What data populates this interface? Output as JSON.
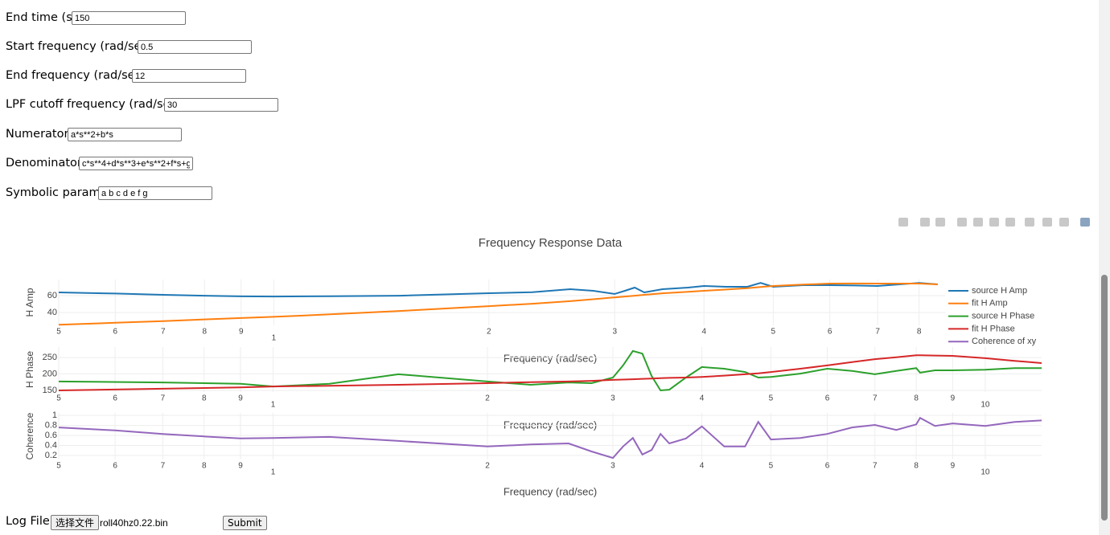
{
  "form": {
    "fields": [
      {
        "label": "End time (s):",
        "value": "150"
      },
      {
        "label": "Start frequency (rad/sec):",
        "value": "0.5"
      },
      {
        "label": "End frequency (rad/sec):",
        "value": "12"
      },
      {
        "label": "LPF cutoff frequency (rad/sec):",
        "value": "30"
      },
      {
        "label": "Numerator:",
        "value": "a*s**2+b*s"
      },
      {
        "label": "Denominator:",
        "value": "c*s**4+d*s**3+e*s**2+f*s+g"
      },
      {
        "label": "Symbolic params:",
        "value": "a b c d e f g"
      }
    ]
  },
  "log_file": {
    "label": "Log File:",
    "button": "选择文件",
    "file": "roll40hz0.22.bin",
    "submit": "Submit"
  },
  "chart_data": [
    {
      "type": "line",
      "title": "Frequency Response Data",
      "xlabel": "Frequency (rad/sec)",
      "ylabel": "H Amp",
      "xscale": "log",
      "grid": true,
      "x": [
        0.5,
        0.6,
        0.7,
        0.8,
        0.9,
        1,
        1.2,
        1.5,
        2,
        2.3,
        2.6,
        2.8,
        3,
        3.1,
        3.2,
        3.3,
        3.5,
        3.8,
        4,
        4.3,
        4.6,
        4.8,
        5,
        5.5,
        6,
        6.5,
        7,
        7.5,
        8,
        8.5
      ],
      "xlim": [
        0.5,
        8.7
      ],
      "xticks": [
        {
          "value": 0.5,
          "label": "5"
        },
        {
          "value": 0.6,
          "label": "6"
        },
        {
          "value": 0.7,
          "label": "7"
        },
        {
          "value": 0.8,
          "label": "8"
        },
        {
          "value": 0.9,
          "label": "9"
        },
        1,
        2,
        3,
        4,
        5,
        6,
        7,
        8
      ],
      "ylim": [
        25,
        79
      ],
      "yticks": [
        40,
        60
      ],
      "series": [
        {
          "name": "source H Amp",
          "color": "#1f77b4",
          "values": [
            63.8,
            62.5,
            61,
            60,
            59.2,
            59,
            59.3,
            60,
            62.9,
            64,
            67.6,
            65.7,
            62,
            65.7,
            69.5,
            63.8,
            67.6,
            69.5,
            71.4,
            70.5,
            70.5,
            75,
            70.5,
            72.4,
            72.4,
            72,
            71.4,
            73.3,
            75,
            73.3
          ]
        },
        {
          "name": "fit H Amp",
          "color": "#ff7f0e",
          "values": [
            25.7,
            28,
            30,
            32,
            33.6,
            35,
            38,
            42,
            47.6,
            50.5,
            53.5,
            55.8,
            58,
            59,
            60,
            61,
            62.8,
            64.6,
            65.7,
            67.3,
            68.8,
            70.3,
            71.4,
            73,
            74.3,
            74.4,
            74.3,
            74.3,
            74.3,
            73.3
          ]
        }
      ]
    },
    {
      "type": "line",
      "xlabel": "Frequency (rad/sec)",
      "ylabel": "H Phase",
      "xscale": "log",
      "grid": true,
      "x": [
        0.5,
        0.7,
        0.9,
        1,
        1.2,
        1.5,
        2,
        2.3,
        2.6,
        2.8,
        3,
        3.1,
        3.2,
        3.3,
        3.4,
        3.5,
        3.6,
        3.8,
        4,
        4.3,
        4.6,
        4.8,
        5,
        5.5,
        6,
        6.5,
        7,
        7.5,
        8,
        8.1,
        8.5,
        9,
        10,
        11,
        12
      ],
      "xlim": [
        0.5,
        12
      ],
      "xticks": [
        {
          "value": 0.5,
          "label": "5"
        },
        {
          "value": 0.6,
          "label": "6"
        },
        {
          "value": 0.7,
          "label": "7"
        },
        {
          "value": 0.8,
          "label": "8"
        },
        {
          "value": 0.9,
          "label": "9"
        },
        1,
        2,
        3,
        4,
        5,
        6,
        7,
        8,
        9,
        10
      ],
      "ylim": [
        145,
        282
      ],
      "yticks": [
        150,
        200,
        250
      ],
      "series": [
        {
          "name": "source H Phase",
          "color": "#2ca02c",
          "values": [
            177,
            174,
            170,
            162,
            170,
            199,
            177,
            167,
            174,
            172,
            189,
            226,
            270,
            262,
            194,
            150,
            152,
            189,
            221,
            216,
            206,
            189,
            191,
            201,
            216,
            209,
            199,
            209,
            218,
            204,
            211,
            211,
            213,
            218,
            218
          ]
        },
        {
          "name": "fit H Phase",
          "color": "#d62728",
          "values": [
            150,
            155,
            159,
            162,
            164,
            167,
            172,
            175,
            177,
            179,
            182,
            183,
            184,
            185,
            186,
            187,
            188,
            189,
            191,
            195,
            199,
            202,
            206,
            216,
            226,
            236,
            245,
            251,
            257,
            257,
            256,
            255,
            248,
            240,
            233
          ]
        }
      ]
    },
    {
      "type": "line",
      "xlabel": "Frequency (rad/sec)",
      "ylabel": "Coherence",
      "xscale": "log",
      "grid": true,
      "x": [
        0.5,
        0.6,
        0.7,
        0.8,
        0.9,
        1,
        1.2,
        1.5,
        2,
        2.3,
        2.6,
        2.8,
        3,
        3.1,
        3.2,
        3.3,
        3.4,
        3.5,
        3.6,
        3.8,
        4,
        4.3,
        4.6,
        4.8,
        5,
        5.5,
        6,
        6.5,
        7,
        7.5,
        8,
        8.1,
        8.5,
        9,
        10,
        11,
        12
      ],
      "xlim": [
        0.5,
        12
      ],
      "xticks": [
        {
          "value": 0.5,
          "label": "5"
        },
        {
          "value": 0.6,
          "label": "6"
        },
        {
          "value": 0.7,
          "label": "7"
        },
        {
          "value": 0.8,
          "label": "8"
        },
        {
          "value": 0.9,
          "label": "9"
        },
        1,
        2,
        3,
        4,
        5,
        6,
        7,
        8,
        9,
        10
      ],
      "ylim": [
        0.12,
        1.05
      ],
      "yticks": [
        0.2,
        0.4,
        0.6,
        0.8,
        1
      ],
      "series": [
        {
          "name": "Coherence of xy",
          "color": "#9467bd",
          "values": [
            0.76,
            0.7,
            0.63,
            0.58,
            0.54,
            0.55,
            0.57,
            0.49,
            0.38,
            0.42,
            0.44,
            0.28,
            0.15,
            0.38,
            0.55,
            0.22,
            0.31,
            0.63,
            0.44,
            0.54,
            0.78,
            0.38,
            0.38,
            0.87,
            0.52,
            0.55,
            0.63,
            0.76,
            0.81,
            0.71,
            0.82,
            0.95,
            0.79,
            0.84,
            0.79,
            0.87,
            0.9
          ]
        }
      ]
    }
  ]
}
